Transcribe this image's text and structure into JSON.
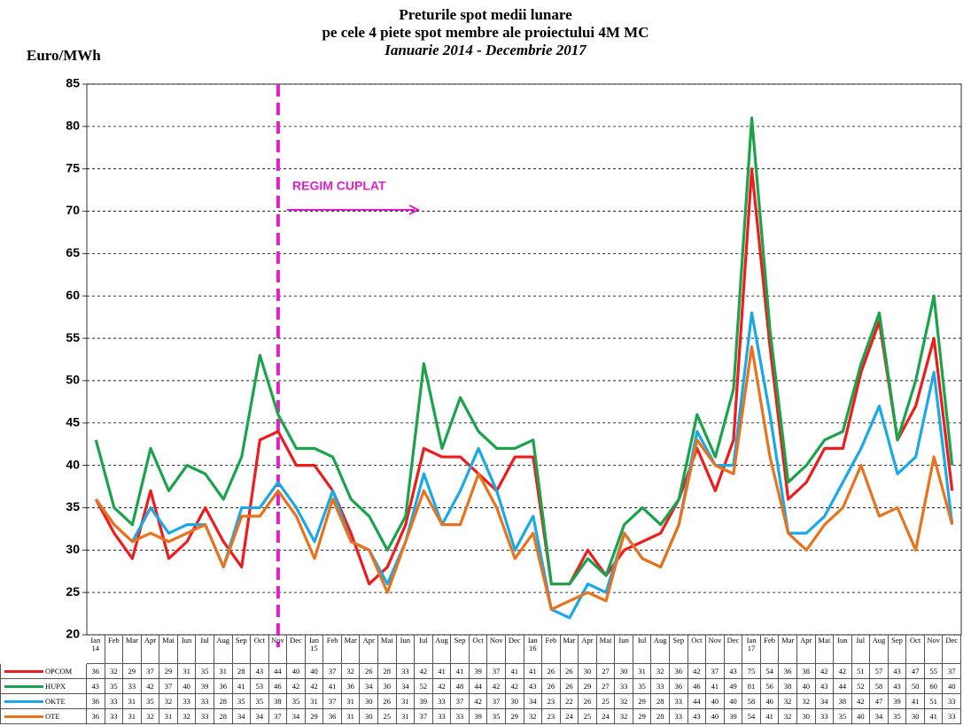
{
  "chart_data": {
    "type": "line",
    "title": "Preturile spot medii lunare",
    "subtitle": "pe cele 4 piete spot membre ale proiectului 4M MC",
    "period": "Ianuarie 2014 - Decembrie 2017",
    "y_label": "Euro/MWh",
    "annotation": "REGIM CUPLAT",
    "categories": [
      "Ian 14",
      "Feb",
      "Mar",
      "Apr",
      "Mai",
      "Iun",
      "Iul",
      "Aug",
      "Sep",
      "Oct",
      "Nov",
      "Dec",
      "Ian 15",
      "Feb",
      "Mar",
      "Apr",
      "Mai",
      "Iun",
      "Iul",
      "Aug",
      "Sep",
      "Oct",
      "Nov",
      "Dec",
      "Ian 16",
      "Feb",
      "Mar",
      "Apr",
      "Mai",
      "Iun",
      "Iul",
      "Aug",
      "Sep",
      "Oct",
      "Nov",
      "Dec",
      "Ian 17",
      "Feb",
      "Mar",
      "Apr",
      "Mai",
      "Iun",
      "Iul",
      "Aug",
      "Sep",
      "Oct",
      "Nov",
      "Dec"
    ],
    "series": [
      {
        "name": "OPCOM",
        "color": "#ee1c1c",
        "values": [
          36,
          32,
          29,
          37,
          29,
          31,
          35,
          31,
          28,
          43,
          44,
          40,
          40,
          37,
          32,
          26,
          28,
          33,
          42,
          41,
          41,
          39,
          37,
          41,
          41,
          26,
          26,
          30,
          27,
          30,
          31,
          32,
          36,
          42,
          37,
          43,
          75,
          54,
          36,
          38,
          42,
          42,
          51,
          57,
          43,
          47,
          55,
          37
        ]
      },
      {
        "name": "HUPX",
        "color": "#1aa34a",
        "values": [
          43,
          35,
          33,
          42,
          37,
          40,
          39,
          36,
          41,
          53,
          46,
          42,
          42,
          41,
          36,
          34,
          30,
          34,
          52,
          42,
          48,
          44,
          42,
          42,
          43,
          26,
          26,
          29,
          27,
          33,
          35,
          33,
          36,
          46,
          41,
          49,
          81,
          56,
          38,
          40,
          43,
          44,
          52,
          58,
          43,
          50,
          60,
          40
        ]
      },
      {
        "name": "OKTE",
        "color": "#1aa8e6",
        "values": [
          36,
          33,
          31,
          35,
          32,
          33,
          33,
          28,
          35,
          35,
          38,
          35,
          31,
          37,
          31,
          30,
          26,
          31,
          39,
          33,
          37,
          42,
          37,
          30,
          34,
          23,
          22,
          26,
          25,
          32,
          29,
          28,
          33,
          44,
          40,
          40,
          58,
          46,
          32,
          32,
          34,
          38,
          42,
          47,
          39,
          41,
          51,
          33
        ]
      },
      {
        "name": "OTE",
        "color": "#e8731c",
        "values": [
          36,
          33,
          31,
          32,
          31,
          32,
          33,
          28,
          34,
          34,
          37,
          34,
          29,
          36,
          31,
          30,
          25,
          31,
          37,
          33,
          33,
          39,
          35,
          29,
          32,
          23,
          24,
          25,
          24,
          32,
          29,
          28,
          33,
          43,
          40,
          39,
          54,
          41,
          32,
          30,
          33,
          35,
          40,
          34,
          35,
          30,
          41,
          33
        ]
      }
    ],
    "ylim": [
      20,
      85
    ],
    "yticks": [
      20,
      25,
      30,
      35,
      40,
      45,
      50,
      55,
      60,
      65,
      70,
      75,
      80,
      85
    ],
    "grid": true
  }
}
